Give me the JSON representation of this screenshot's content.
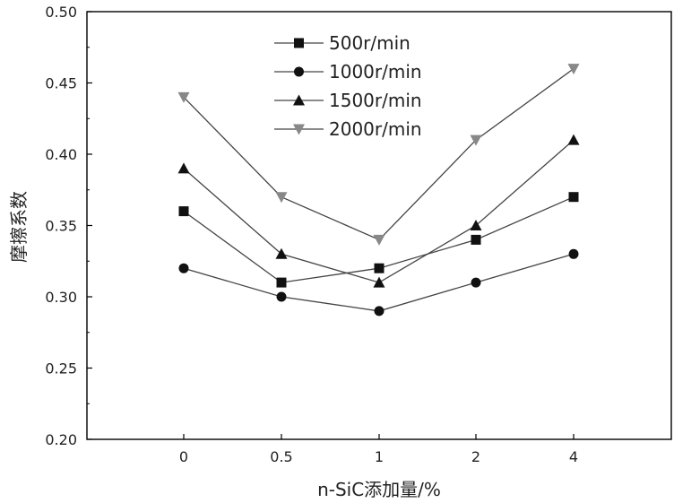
{
  "chart_data": {
    "type": "line",
    "title": "",
    "xlabel": "n-SiC添加量/%",
    "ylabel": "摩擦系数",
    "categories": [
      "0",
      "0.5",
      "1",
      "2",
      "4"
    ],
    "ylim": [
      0.2,
      0.5
    ],
    "yticks": [
      "0.20",
      "0.25",
      "0.30",
      "0.35",
      "0.40",
      "0.45",
      "0.50"
    ],
    "grid": false,
    "legend_position": "top-left",
    "series": [
      {
        "name": "500r/min",
        "marker": "square",
        "values": [
          0.36,
          0.31,
          0.32,
          0.34,
          0.37
        ]
      },
      {
        "name": "1000r/min",
        "marker": "circle",
        "values": [
          0.32,
          0.3,
          0.29,
          0.31,
          0.33
        ]
      },
      {
        "name": "1500r/min",
        "marker": "triangle-up",
        "values": [
          0.39,
          0.33,
          0.31,
          0.35,
          0.41
        ]
      },
      {
        "name": "2000r/min",
        "marker": "triangle-down",
        "values": [
          0.44,
          0.37,
          0.34,
          0.41,
          0.46
        ]
      }
    ],
    "colors": {
      "line": "#444444",
      "marker_dark": "#111111",
      "marker_light": "#888888",
      "axis": "#000000"
    }
  }
}
